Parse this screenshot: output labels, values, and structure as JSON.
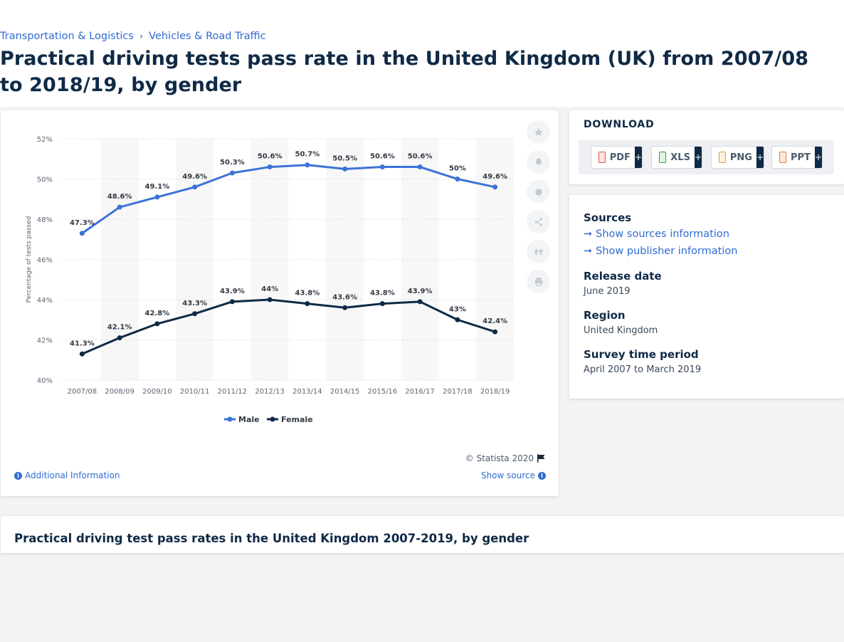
{
  "breadcrumb": {
    "items": [
      "Transportation & Logistics",
      "Vehicles & Road Traffic"
    ],
    "separator": "›"
  },
  "page_title": "Practical driving tests pass rate in the United Kingdom (UK) from 2007/08 to 2018/19, by gender",
  "chart_data": {
    "type": "line",
    "title": "",
    "xlabel": "",
    "ylabel": "Percentage of tests passed",
    "categories": [
      "2007/08",
      "2008/09",
      "2009/10",
      "2010/11",
      "2011/12",
      "2012/13",
      "2013/14",
      "2014/15",
      "2015/16",
      "2016/17",
      "2017/18",
      "2018/19"
    ],
    "ylim": [
      40,
      52
    ],
    "yticks": [
      "40%",
      "42%",
      "44%",
      "46%",
      "48%",
      "50%",
      "52%"
    ],
    "series": [
      {
        "name": "Male",
        "color": "#3b73d6",
        "values": [
          47.3,
          48.6,
          49.1,
          49.6,
          50.3,
          50.6,
          50.7,
          50.5,
          50.6,
          50.6,
          50,
          49.6
        ],
        "labels": [
          "47.3%",
          "48.6%",
          "49.1%",
          "49.6%",
          "50.3%",
          "50.6%",
          "50.7%",
          "50.5%",
          "50.6%",
          "50.6%",
          "50%",
          "49.6%"
        ]
      },
      {
        "name": "Female",
        "color": "#0f2a46",
        "values": [
          41.3,
          42.1,
          42.8,
          43.3,
          43.9,
          44,
          43.8,
          43.6,
          43.8,
          43.9,
          43,
          42.4
        ],
        "labels": [
          "41.3%",
          "42.1%",
          "42.8%",
          "43.3%",
          "43.9%",
          "44%",
          "43.8%",
          "43.6%",
          "43.8%",
          "43.9%",
          "43%",
          "42.4%"
        ]
      }
    ],
    "grid": true,
    "legend_position": "bottom-center"
  },
  "chart_footer": {
    "copyright": "© Statista 2020",
    "additional_info": "Additional Information",
    "show_source": "Show source"
  },
  "tools": [
    "star-icon",
    "bell-icon",
    "gear-icon",
    "share-icon",
    "quote-icon",
    "print-icon"
  ],
  "download": {
    "title": "DOWNLOAD",
    "buttons": [
      {
        "label": "PDF",
        "plus": "+",
        "color": "#d9534f"
      },
      {
        "label": "XLS",
        "plus": "+",
        "color": "#3e9b46"
      },
      {
        "label": "PNG",
        "plus": "+",
        "color": "#d9a13a"
      },
      {
        "label": "PPT",
        "plus": "+",
        "color": "#e07b2c"
      }
    ]
  },
  "meta": {
    "sources_label": "Sources",
    "show_sources": "Show sources information",
    "show_publisher": "Show publisher information",
    "release_label": "Release date",
    "release_value": "June 2019",
    "region_label": "Region",
    "region_value": "United Kingdom",
    "survey_label": "Survey time period",
    "survey_value": "April 2007 to March 2019"
  },
  "bottom_card_title": "Practical driving test pass rates in the United Kingdom 2007-2019, by gender"
}
